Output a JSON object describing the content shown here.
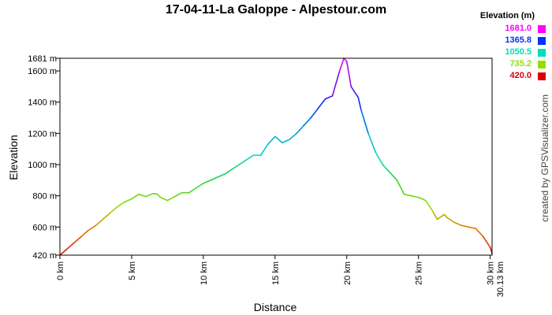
{
  "chart_data": {
    "type": "line",
    "title": "17-04-11-La Galoppe - Alpestour.com",
    "xlabel": "Distance",
    "ylabel": "Elevation",
    "xlim": [
      0,
      30.13
    ],
    "ylim": [
      420,
      1681
    ],
    "x_ticks": [
      {
        "value": 0,
        "label": "0 km"
      },
      {
        "value": 5,
        "label": "5 km"
      },
      {
        "value": 10,
        "label": "10 km"
      },
      {
        "value": 15,
        "label": "15 km"
      },
      {
        "value": 20,
        "label": "20 km"
      },
      {
        "value": 25,
        "label": "25 km"
      },
      {
        "value": 30,
        "label": "30 km"
      }
    ],
    "x_end_label": "30.13 km",
    "y_ticks": [
      {
        "value": 420,
        "label": "420 m"
      },
      {
        "value": 600,
        "label": "600 m"
      },
      {
        "value": 800,
        "label": "800 m"
      },
      {
        "value": 1000,
        "label": "1000 m"
      },
      {
        "value": 1200,
        "label": "1200 m"
      },
      {
        "value": 1400,
        "label": "1400 m"
      },
      {
        "value": 1600,
        "label": "1600 m"
      },
      {
        "value": 1681,
        "label": "1681 m"
      }
    ],
    "grid": false,
    "legend": {
      "title": "Elevation (m)",
      "position": "top-right",
      "entries": [
        {
          "label": "1681.0",
          "color": "#ff00ff"
        },
        {
          "label": "1365.8",
          "color": "#0033ff"
        },
        {
          "label": "1050.5",
          "color": "#00ddbb"
        },
        {
          "label": "735.2",
          "color": "#99dd00"
        },
        {
          "label": "420.0",
          "color": "#dd0000"
        }
      ]
    },
    "series": [
      {
        "x": [
          0,
          0.5,
          1,
          1.5,
          2,
          2.5,
          3,
          3.5,
          4,
          4.5,
          5,
          5.5,
          6,
          6.5,
          6.8,
          7,
          7.5,
          8,
          8.5,
          9,
          9.5,
          10,
          10.5,
          11,
          11.5,
          12,
          12.5,
          13,
          13.5,
          14,
          14.5,
          15,
          15.5,
          16,
          16.5,
          17,
          17.5,
          18,
          18.5,
          19,
          19.5,
          19.8,
          20,
          20.3,
          20.8,
          21,
          21.5,
          22,
          22.5,
          23,
          23.5,
          24,
          24.5,
          25,
          25.5,
          26,
          26.3,
          26.8,
          27,
          27.5,
          28,
          28.5,
          29,
          29.5,
          30,
          30.13
        ],
        "y": [
          420,
          460,
          500,
          540,
          580,
          610,
          650,
          690,
          730,
          760,
          780,
          810,
          795,
          815,
          810,
          790,
          770,
          795,
          820,
          820,
          850,
          880,
          900,
          920,
          940,
          970,
          1000,
          1030,
          1060,
          1060,
          1130,
          1180,
          1140,
          1160,
          1200,
          1250,
          1300,
          1360,
          1420,
          1440,
          1600,
          1681,
          1660,
          1500,
          1430,
          1350,
          1200,
          1080,
          1000,
          950,
          900,
          810,
          800,
          790,
          770,
          700,
          650,
          680,
          660,
          630,
          610,
          600,
          590,
          540,
          470,
          430
        ]
      }
    ]
  },
  "watermark": "created by GPSVisualizer.com"
}
